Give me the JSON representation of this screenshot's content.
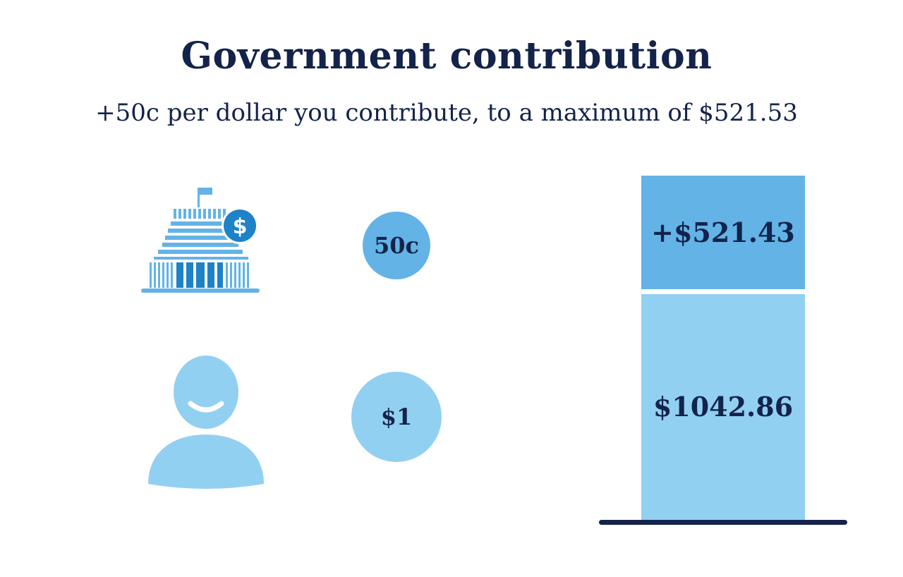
{
  "header": {
    "title": "Government contribution",
    "subtitle": "+50c per dollar you contribute, to a maximum of $521.53"
  },
  "icons": {
    "government": "government-building-icon",
    "dollar_badge": "dollar-sign-icon",
    "person": "person-icon"
  },
  "coins": {
    "government": "50c",
    "you": "$1"
  },
  "bars": {
    "government": "+$521.43",
    "you": "$1042.86"
  },
  "colors": {
    "navy": "#13234a",
    "government_blue": "#63b3e6",
    "member_blue": "#92d0f2",
    "badge_blue": "#1d82c6"
  }
}
